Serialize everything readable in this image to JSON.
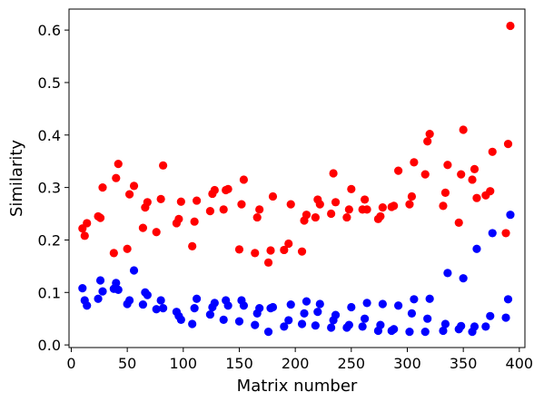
{
  "chart_data": {
    "type": "scatter",
    "title": "",
    "xlabel": "Matrix number",
    "ylabel": "Similarity",
    "xlim": [
      -2,
      405
    ],
    "ylim": [
      -0.005,
      0.64
    ],
    "grid": false,
    "xticks": [
      0,
      50,
      100,
      150,
      200,
      250,
      300,
      350,
      400
    ],
    "xtick_labels": [
      "0",
      "50",
      "100",
      "150",
      "200",
      "250",
      "300",
      "350",
      "400"
    ],
    "yticks": [
      0.0,
      0.1,
      0.2,
      0.3,
      0.4,
      0.5,
      0.6
    ],
    "ytick_labels": [
      "0.0",
      "0.1",
      "0.2",
      "0.3",
      "0.4",
      "0.5",
      "0.6"
    ],
    "series": [
      {
        "color": "#ff0000",
        "x": [
          10,
          12,
          14,
          24,
          26,
          28,
          38,
          40,
          42,
          50,
          52,
          56,
          64,
          66,
          68,
          76,
          80,
          82,
          94,
          96,
          98,
          108,
          110,
          112,
          124,
          126,
          128,
          136,
          138,
          140,
          150,
          152,
          154,
          164,
          166,
          168,
          176,
          178,
          180,
          190,
          194,
          196,
          206,
          208,
          210,
          218,
          220,
          222,
          232,
          234,
          236,
          246,
          248,
          250,
          260,
          262,
          264,
          274,
          276,
          278,
          286,
          288,
          292,
          302,
          304,
          306,
          316,
          318,
          320,
          332,
          334,
          336,
          346,
          348,
          350,
          358,
          360,
          362,
          370,
          374,
          376,
          388,
          390,
          392
        ],
        "y": [
          0.222,
          0.208,
          0.232,
          0.245,
          0.242,
          0.3,
          0.175,
          0.318,
          0.345,
          0.183,
          0.287,
          0.303,
          0.223,
          0.262,
          0.272,
          0.215,
          0.278,
          0.342,
          0.232,
          0.24,
          0.273,
          0.188,
          0.235,
          0.275,
          0.255,
          0.288,
          0.295,
          0.258,
          0.295,
          0.297,
          0.182,
          0.268,
          0.315,
          0.175,
          0.243,
          0.258,
          0.157,
          0.18,
          0.283,
          0.181,
          0.193,
          0.268,
          0.178,
          0.237,
          0.248,
          0.243,
          0.277,
          0.268,
          0.25,
          0.327,
          0.272,
          0.243,
          0.258,
          0.297,
          0.258,
          0.277,
          0.258,
          0.24,
          0.245,
          0.262,
          0.263,
          0.265,
          0.332,
          0.268,
          0.283,
          0.348,
          0.325,
          0.388,
          0.402,
          0.265,
          0.29,
          0.343,
          0.233,
          0.325,
          0.41,
          0.315,
          0.335,
          0.28,
          0.285,
          0.293,
          0.368,
          0.213,
          0.383,
          0.608
        ]
      },
      {
        "color": "#0000ff",
        "x": [
          10,
          12,
          14,
          24,
          26,
          28,
          38,
          40,
          42,
          50,
          52,
          56,
          64,
          66,
          68,
          76,
          80,
          82,
          94,
          96,
          98,
          108,
          110,
          112,
          124,
          126,
          128,
          136,
          138,
          140,
          150,
          152,
          154,
          164,
          166,
          168,
          176,
          178,
          180,
          190,
          194,
          196,
          206,
          208,
          210,
          218,
          220,
          222,
          232,
          234,
          236,
          246,
          248,
          250,
          260,
          262,
          264,
          274,
          276,
          278,
          286,
          288,
          292,
          302,
          304,
          306,
          316,
          318,
          320,
          332,
          334,
          336,
          346,
          348,
          350,
          358,
          360,
          362,
          370,
          374,
          376,
          388,
          390,
          392
        ],
        "y": [
          0.108,
          0.085,
          0.075,
          0.088,
          0.123,
          0.102,
          0.107,
          0.118,
          0.105,
          0.078,
          0.085,
          0.142,
          0.077,
          0.1,
          0.095,
          0.068,
          0.085,
          0.07,
          0.063,
          0.055,
          0.048,
          0.04,
          0.07,
          0.088,
          0.058,
          0.072,
          0.08,
          0.048,
          0.085,
          0.075,
          0.045,
          0.085,
          0.075,
          0.038,
          0.06,
          0.07,
          0.025,
          0.07,
          0.072,
          0.035,
          0.047,
          0.077,
          0.04,
          0.06,
          0.083,
          0.037,
          0.063,
          0.078,
          0.033,
          0.047,
          0.057,
          0.033,
          0.038,
          0.072,
          0.035,
          0.05,
          0.08,
          0.027,
          0.038,
          0.078,
          0.027,
          0.03,
          0.075,
          0.025,
          0.06,
          0.087,
          0.025,
          0.05,
          0.088,
          0.027,
          0.04,
          0.137,
          0.03,
          0.036,
          0.127,
          0.025,
          0.035,
          0.183,
          0.035,
          0.055,
          0.213,
          0.052,
          0.087,
          0.248
        ]
      }
    ]
  }
}
